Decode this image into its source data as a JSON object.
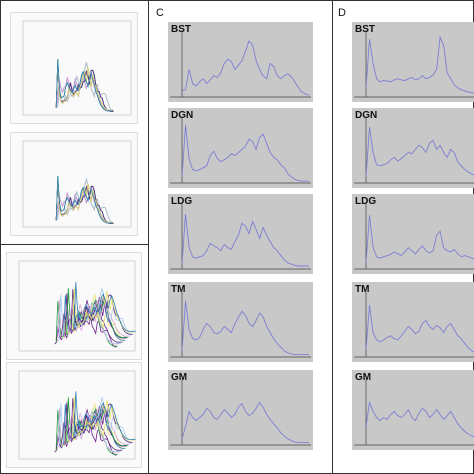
{
  "column_letters": {
    "c": "C",
    "d": "D"
  },
  "colors": {
    "panel_bg": "#c8c8c8",
    "trace": "#7d7fd4",
    "axis": "#404040",
    "multi": [
      "#6d1e8a",
      "#1a9d3a",
      "#d6a4d8",
      "#a8c8e8",
      "#5e2a7a",
      "#e6e36a",
      "#2f7fb8"
    ]
  },
  "chart_data": [
    {
      "type": "line",
      "label": "BST",
      "series": [
        {
          "column": "C",
          "values": [
            0.1,
            0.12,
            0.45,
            0.22,
            0.18,
            0.25,
            0.3,
            0.22,
            0.28,
            0.35,
            0.32,
            0.4,
            0.55,
            0.62,
            0.58,
            0.45,
            0.52,
            0.6,
            0.75,
            0.92,
            0.85,
            0.6,
            0.45,
            0.35,
            0.3,
            0.55,
            0.5,
            0.35,
            0.3,
            0.35,
            0.38,
            0.33,
            0.25,
            0.15,
            0.08,
            0.05,
            0.03
          ]
        },
        {
          "column": "D",
          "values": [
            0.15,
            0.95,
            0.55,
            0.3,
            0.25,
            0.27,
            0.26,
            0.25,
            0.28,
            0.3,
            0.28,
            0.27,
            0.3,
            0.32,
            0.28,
            0.3,
            0.35,
            0.3,
            0.32,
            0.36,
            0.45,
            0.98,
            0.85,
            0.4,
            0.3,
            0.2,
            0.15,
            0.12,
            0.1,
            0.08,
            0.07,
            0.06,
            0.05,
            0.05,
            0.04,
            0.04,
            0.04
          ]
        }
      ]
    },
    {
      "type": "line",
      "label": "DGN",
      "series": [
        {
          "column": "C",
          "values": [
            0.1,
            0.95,
            0.4,
            0.22,
            0.2,
            0.22,
            0.25,
            0.28,
            0.45,
            0.52,
            0.4,
            0.35,
            0.38,
            0.42,
            0.48,
            0.45,
            0.5,
            0.55,
            0.6,
            0.72,
            0.68,
            0.55,
            0.75,
            0.8,
            0.65,
            0.5,
            0.42,
            0.38,
            0.3,
            0.25,
            0.15,
            0.1,
            0.06,
            0.04,
            0.03,
            0.03,
            0.03
          ]
        },
        {
          "column": "D",
          "values": [
            0.1,
            0.92,
            0.5,
            0.3,
            0.28,
            0.3,
            0.32,
            0.38,
            0.42,
            0.36,
            0.4,
            0.45,
            0.5,
            0.48,
            0.55,
            0.62,
            0.58,
            0.5,
            0.65,
            0.7,
            0.55,
            0.62,
            0.5,
            0.42,
            0.55,
            0.5,
            0.35,
            0.28,
            0.22,
            0.18,
            0.15,
            0.12,
            0.1,
            0.08,
            0.06,
            0.05,
            0.05
          ]
        }
      ]
    },
    {
      "type": "line",
      "label": "LDG",
      "series": [
        {
          "column": "C",
          "values": [
            0.08,
            0.9,
            0.35,
            0.2,
            0.18,
            0.2,
            0.22,
            0.3,
            0.42,
            0.38,
            0.35,
            0.3,
            0.4,
            0.35,
            0.32,
            0.45,
            0.55,
            0.75,
            0.7,
            0.58,
            0.78,
            0.65,
            0.5,
            0.68,
            0.55,
            0.45,
            0.35,
            0.3,
            0.22,
            0.15,
            0.1,
            0.08,
            0.06,
            0.05,
            0.05,
            0.05,
            0.05
          ]
        },
        {
          "column": "D",
          "values": [
            0.1,
            0.88,
            0.35,
            0.2,
            0.18,
            0.2,
            0.22,
            0.24,
            0.28,
            0.25,
            0.22,
            0.28,
            0.35,
            0.3,
            0.25,
            0.32,
            0.38,
            0.3,
            0.26,
            0.3,
            0.55,
            0.62,
            0.35,
            0.3,
            0.28,
            0.32,
            0.25,
            0.2,
            0.22,
            0.2,
            0.18,
            0.15,
            0.12,
            0.1,
            0.08,
            0.06,
            0.05
          ]
        }
      ]
    },
    {
      "type": "line",
      "label": "TM",
      "series": [
        {
          "column": "C",
          "values": [
            0.1,
            0.92,
            0.45,
            0.3,
            0.28,
            0.32,
            0.45,
            0.55,
            0.5,
            0.4,
            0.38,
            0.42,
            0.5,
            0.45,
            0.4,
            0.55,
            0.65,
            0.75,
            0.68,
            0.55,
            0.5,
            0.6,
            0.72,
            0.66,
            0.5,
            0.4,
            0.3,
            0.22,
            0.16,
            0.1,
            0.07,
            0.05,
            0.04,
            0.04,
            0.04,
            0.04,
            0.04
          ]
        },
        {
          "column": "D",
          "values": [
            0.12,
            0.85,
            0.4,
            0.28,
            0.25,
            0.28,
            0.32,
            0.35,
            0.3,
            0.28,
            0.35,
            0.42,
            0.5,
            0.45,
            0.38,
            0.42,
            0.55,
            0.6,
            0.5,
            0.45,
            0.52,
            0.48,
            0.4,
            0.5,
            0.55,
            0.45,
            0.35,
            0.3,
            0.22,
            0.15,
            0.1,
            0.07,
            0.05,
            0.05,
            0.04,
            0.04,
            0.04
          ]
        }
      ]
    },
    {
      "type": "line",
      "label": "GM",
      "series": [
        {
          "column": "C",
          "values": [
            0.1,
            0.3,
            0.55,
            0.45,
            0.4,
            0.45,
            0.5,
            0.6,
            0.55,
            0.45,
            0.42,
            0.5,
            0.58,
            0.52,
            0.45,
            0.5,
            0.62,
            0.68,
            0.55,
            0.48,
            0.52,
            0.6,
            0.7,
            0.62,
            0.5,
            0.42,
            0.35,
            0.28,
            0.2,
            0.15,
            0.1,
            0.07,
            0.05,
            0.04,
            0.04,
            0.04,
            0.04
          ]
        },
        {
          "column": "D",
          "values": [
            0.3,
            0.7,
            0.55,
            0.45,
            0.4,
            0.45,
            0.42,
            0.5,
            0.55,
            0.48,
            0.45,
            0.5,
            0.58,
            0.45,
            0.4,
            0.52,
            0.6,
            0.55,
            0.45,
            0.5,
            0.58,
            0.5,
            0.42,
            0.48,
            0.55,
            0.45,
            0.35,
            0.28,
            0.22,
            0.18,
            0.15,
            0.12,
            0.1,
            0.08,
            0.07,
            0.06,
            0.06
          ]
        }
      ]
    }
  ]
}
